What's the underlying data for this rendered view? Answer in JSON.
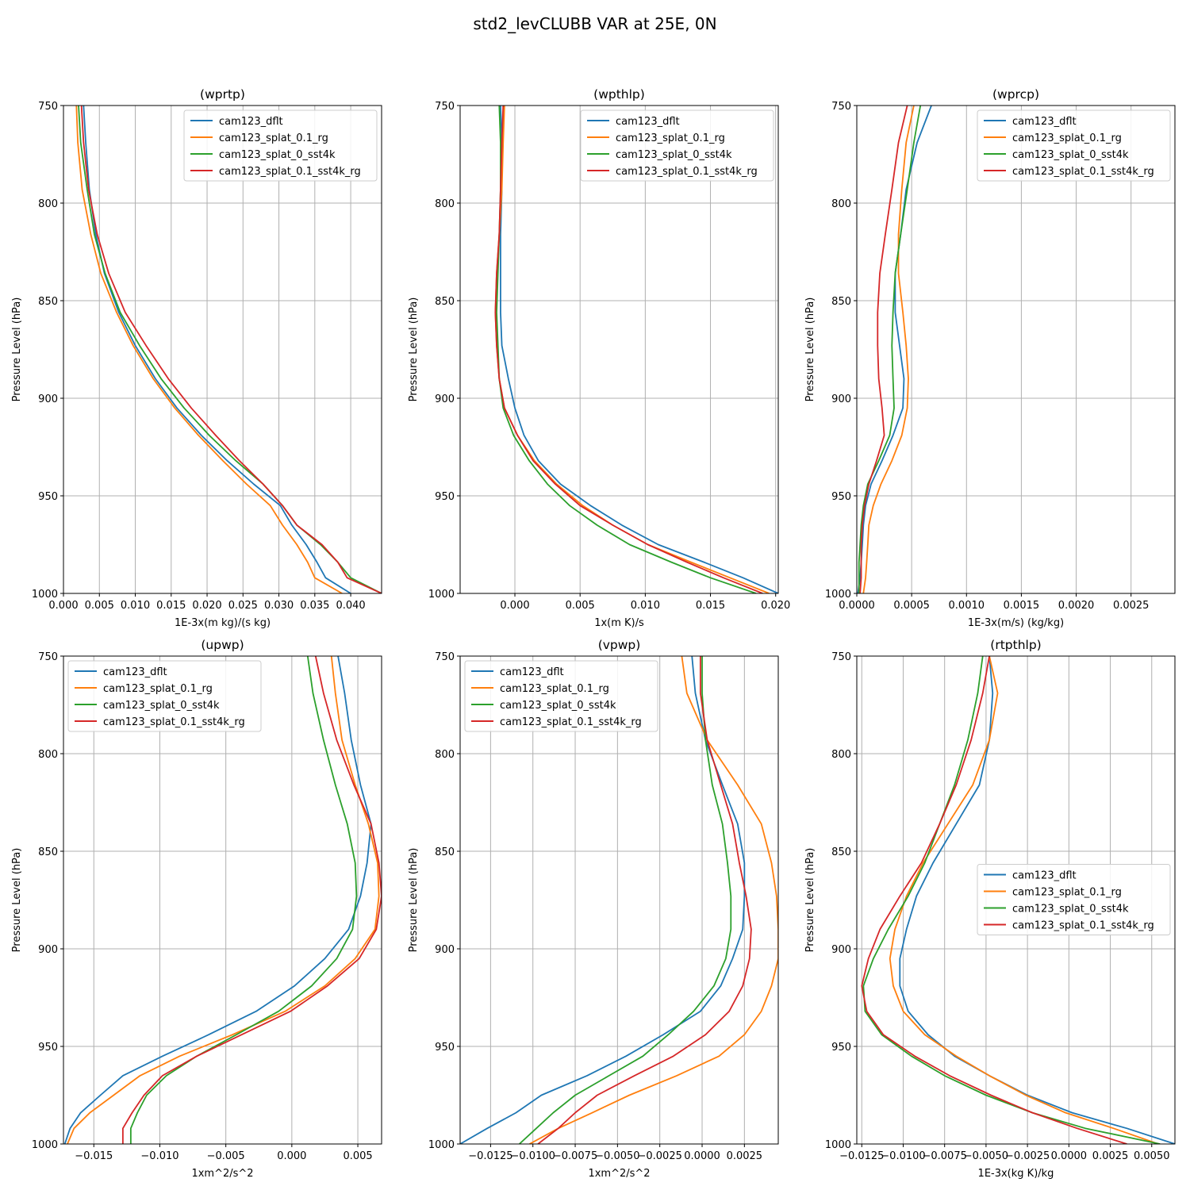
{
  "suptitle": "std2_levCLUBB VAR at 25E, 0N",
  "legend_entries": [
    "cam123_dflt",
    "cam123_splat_0.1_rg",
    "cam123_splat_0_sst4k",
    "cam123_splat_0.1_sst4k_rg"
  ],
  "series_colors": [
    "#1f77b4",
    "#ff7f0e",
    "#2ca02c",
    "#d62728"
  ],
  "levels_hPa": [
    750,
    769,
    793,
    816,
    836,
    856,
    873,
    890,
    905,
    919,
    932,
    944,
    955,
    965,
    975,
    984,
    992,
    1000
  ],
  "chart_data": [
    {
      "type": "line",
      "title": "(wprtp)",
      "xlabel": "1E-3x(m kg)/(s kg)",
      "ylabel": "Pressure Level (hPa)",
      "xlim": [
        0.0,
        0.0443
      ],
      "ylim": [
        1000,
        750
      ],
      "xticks": [
        "0.000",
        "0.005",
        "0.010",
        "0.015",
        "0.020",
        "0.025",
        "0.030",
        "0.035",
        "0.040"
      ],
      "yticks": [
        "750",
        "800",
        "850",
        "900",
        "950",
        "1000"
      ],
      "legend": "upper right",
      "series": [
        {
          "name": "cam123_dflt",
          "values": [
            0.0028,
            0.0031,
            0.0036,
            0.0045,
            0.0057,
            0.0077,
            0.01,
            0.0128,
            0.0158,
            0.0192,
            0.0228,
            0.0265,
            0.0302,
            0.0318,
            0.0338,
            0.0353,
            0.0365,
            0.04
          ]
        },
        {
          "name": "cam123_splat_0.1_rg",
          "values": [
            0.0018,
            0.002,
            0.0026,
            0.0038,
            0.0052,
            0.0074,
            0.0097,
            0.0125,
            0.0155,
            0.0188,
            0.0222,
            0.0255,
            0.0288,
            0.0305,
            0.0325,
            0.034,
            0.035,
            0.0388
          ]
        },
        {
          "name": "cam123_splat_0_sst4k",
          "values": [
            0.0021,
            0.0024,
            0.0033,
            0.0043,
            0.0058,
            0.0079,
            0.0106,
            0.0136,
            0.0168,
            0.0203,
            0.024,
            0.0278,
            0.0305,
            0.0325,
            0.0358,
            0.0382,
            0.04,
            0.0443
          ]
        },
        {
          "name": "cam123_splat_0.1_sst4k_rg",
          "values": [
            0.0025,
            0.0028,
            0.0035,
            0.0047,
            0.0063,
            0.0086,
            0.0115,
            0.0146,
            0.0178,
            0.0212,
            0.0245,
            0.0278,
            0.0305,
            0.0325,
            0.036,
            0.0382,
            0.0395,
            0.0443
          ]
        }
      ]
    },
    {
      "type": "line",
      "title": "(wpthlp)",
      "xlabel": "1x(m K)/s",
      "ylabel": "Pressure Level (hPa)",
      "xlim": [
        -0.0042,
        0.0202
      ],
      "ylim": [
        1000,
        750
      ],
      "xticks": [
        "0.000",
        "0.005",
        "0.010",
        "0.015",
        "0.020"
      ],
      "yticks": [
        "750",
        "800",
        "850",
        "900",
        "950",
        "1000"
      ],
      "legend": "upper right",
      "series": [
        {
          "name": "cam123_dflt",
          "values": [
            -0.0011,
            -0.001,
            -0.001,
            -0.0011,
            -0.0011,
            -0.0011,
            -0.001,
            -0.0005,
            0.0,
            0.0007,
            0.0018,
            0.0035,
            0.0058,
            0.0082,
            0.011,
            0.0145,
            0.0175,
            0.0202
          ]
        },
        {
          "name": "cam123_splat_0.1_rg",
          "values": [
            -0.0008,
            -0.0009,
            -0.001,
            -0.0012,
            -0.0014,
            -0.0015,
            -0.0014,
            -0.0012,
            -0.0008,
            0.0002,
            0.0015,
            0.0032,
            0.0052,
            0.0075,
            0.0102,
            0.0135,
            0.0165,
            0.0195
          ]
        },
        {
          "name": "cam123_splat_0_sst4k",
          "values": [
            -0.0012,
            -0.0011,
            -0.0011,
            -0.0012,
            -0.0013,
            -0.0014,
            -0.0013,
            -0.0012,
            -0.0009,
            -0.0001,
            0.0011,
            0.0025,
            0.0042,
            0.0063,
            0.0088,
            0.012,
            0.015,
            0.0185
          ]
        },
        {
          "name": "cam123_splat_0.1_sst4k_rg",
          "values": [
            -0.0009,
            -0.001,
            -0.0011,
            -0.0012,
            -0.0014,
            -0.0015,
            -0.0014,
            -0.0012,
            -0.0008,
            0.0002,
            0.0014,
            0.0031,
            0.005,
            0.0075,
            0.0102,
            0.0132,
            0.016,
            0.019
          ]
        }
      ]
    },
    {
      "type": "line",
      "title": "(wprcp)",
      "xlabel": "1E-3x(m/s) (kg/kg)",
      "ylabel": "Pressure Level (hPa)",
      "xlim": [
        0.0,
        0.0029
      ],
      "ylim": [
        1000,
        750
      ],
      "xticks": [
        "0.0000",
        "0.0005",
        "0.0010",
        "0.0015",
        "0.0020",
        "0.0025"
      ],
      "yticks": [
        "750",
        "800",
        "850",
        "900",
        "950",
        "1000"
      ],
      "legend": "upper right",
      "series": [
        {
          "name": "cam123_dflt",
          "values": [
            0.00068,
            0.00055,
            0.00045,
            0.0004,
            0.00035,
            0.00035,
            0.00039,
            0.00043,
            0.00042,
            0.00033,
            0.00023,
            0.00013,
            8e-05,
            6e-05,
            5e-05,
            4e-05,
            3e-05,
            1e-05
          ]
        },
        {
          "name": "cam123_splat_0.1_rg",
          "values": [
            0.00052,
            0.00045,
            0.00041,
            0.00038,
            0.00038,
            0.00042,
            0.00045,
            0.00047,
            0.00046,
            0.00041,
            0.00032,
            0.00022,
            0.00015,
            0.00011,
            0.0001,
            9e-05,
            8e-05,
            6e-05
          ]
        },
        {
          "name": "cam123_splat_0_sst4k",
          "values": [
            0.00058,
            0.00052,
            0.00046,
            0.0004,
            0.00035,
            0.00033,
            0.00032,
            0.00033,
            0.00034,
            0.0003,
            0.0002,
            0.0001,
            6e-05,
            4e-05,
            3e-05,
            2e-05,
            2e-05,
            2e-05
          ]
        },
        {
          "name": "cam123_splat_0.1_sst4k_rg",
          "values": [
            0.00046,
            0.00038,
            0.00032,
            0.00026,
            0.00021,
            0.00019,
            0.00019,
            0.0002,
            0.00023,
            0.00025,
            0.00018,
            0.00011,
            7e-05,
            5e-05,
            4e-05,
            4e-05,
            4e-05,
            3e-05
          ]
        }
      ]
    },
    {
      "type": "line",
      "title": "(upwp)",
      "xlabel": "1xm^2/s^2",
      "ylabel": "Pressure Level (hPa)",
      "xlim": [
        -0.0173,
        0.0068
      ],
      "ylim": [
        1000,
        750
      ],
      "xticks": [
        "−0.015",
        "−0.010",
        "−0.005",
        "0.000",
        "0.005"
      ],
      "yticks": [
        "750",
        "800",
        "850",
        "900",
        "950",
        "1000"
      ],
      "legend": "upper left",
      "series": [
        {
          "name": "cam123_dflt",
          "values": [
            0.0035,
            0.004,
            0.0045,
            0.0052,
            0.006,
            0.0057,
            0.0052,
            0.0043,
            0.0025,
            0.0002,
            -0.0027,
            -0.0063,
            -0.0098,
            -0.0128,
            -0.0145,
            -0.016,
            -0.0168,
            -0.0172
          ]
        },
        {
          "name": "cam123_splat_0.1_rg",
          "values": [
            0.003,
            0.0033,
            0.0038,
            0.0048,
            0.0058,
            0.0065,
            0.0066,
            0.0063,
            0.0048,
            0.0025,
            -0.0005,
            -0.0045,
            -0.0085,
            -0.0115,
            -0.0135,
            -0.0153,
            -0.0165,
            -0.017
          ]
        },
        {
          "name": "cam123_splat_0_sst4k",
          "values": [
            0.0012,
            0.0016,
            0.0024,
            0.0033,
            0.0042,
            0.0048,
            0.0049,
            0.0046,
            0.0034,
            0.0015,
            -0.001,
            -0.0042,
            -0.0072,
            -0.0095,
            -0.011,
            -0.0117,
            -0.0122,
            -0.0122
          ]
        },
        {
          "name": "cam123_splat_0.1_sst4k_rg",
          "values": [
            0.0018,
            0.0024,
            0.0034,
            0.0047,
            0.006,
            0.0066,
            0.0068,
            0.0064,
            0.0051,
            0.0027,
            -0.0001,
            -0.0038,
            -0.0072,
            -0.0098,
            -0.0112,
            -0.0121,
            -0.0128,
            -0.0128
          ]
        }
      ]
    },
    {
      "type": "line",
      "title": "(vpwp)",
      "xlabel": "1xm^2/s^2",
      "ylabel": "Pressure Level (hPa)",
      "xlim": [
        -0.0143,
        0.0045
      ],
      "ylim": [
        1000,
        750
      ],
      "xticks": [
        "−0.0125",
        "−0.0100",
        "−0.0075",
        "−0.0050",
        "−0.0025",
        "0.0000",
        "0.0025"
      ],
      "yticks": [
        "750",
        "800",
        "850",
        "900",
        "950",
        "1000"
      ],
      "legend": "upper left",
      "series": [
        {
          "name": "cam123_dflt",
          "values": [
            -0.0006,
            -0.0004,
            0.0002,
            0.0012,
            0.0021,
            0.0025,
            0.0025,
            0.0024,
            0.0018,
            0.0011,
            -0.0001,
            -0.0023,
            -0.0045,
            -0.0068,
            -0.0095,
            -0.011,
            -0.0127,
            -0.0143
          ]
        },
        {
          "name": "cam123_splat_0.1_rg",
          "values": [
            -0.0012,
            -0.0009,
            0.0003,
            0.0021,
            0.0035,
            0.0041,
            0.0044,
            0.0045,
            0.0045,
            0.0041,
            0.0035,
            0.0025,
            0.001,
            -0.0015,
            -0.0043,
            -0.0065,
            -0.0085,
            -0.0102
          ]
        },
        {
          "name": "cam123_splat_0_sst4k",
          "values": [
            0.0,
            0.0,
            0.0002,
            0.0006,
            0.0012,
            0.0015,
            0.0017,
            0.0017,
            0.0014,
            0.0007,
            -0.0005,
            -0.002,
            -0.0035,
            -0.0055,
            -0.0075,
            -0.0088,
            -0.0098,
            -0.0108
          ]
        },
        {
          "name": "cam123_splat_0.1_sst4k_rg",
          "values": [
            -0.0001,
            -0.0001,
            0.0003,
            0.0011,
            0.0018,
            0.0022,
            0.0026,
            0.0029,
            0.0028,
            0.0024,
            0.0016,
            0.0002,
            -0.0017,
            -0.004,
            -0.0062,
            -0.0075,
            -0.0085,
            -0.0097
          ]
        }
      ]
    },
    {
      "type": "line",
      "title": "(rtpthlp)",
      "xlabel": "1E-3x(kg K)/kg",
      "ylabel": "Pressure Level (hPa)",
      "xlim": [
        -0.0128,
        0.0064
      ],
      "ylim": [
        1000,
        750
      ],
      "xticks": [
        "−0.0125",
        "−0.0100",
        "−0.0075",
        "−0.0050",
        "−0.0025",
        "0.0000",
        "0.0025",
        "0.0050"
      ],
      "yticks": [
        "750",
        "800",
        "850",
        "900",
        "950",
        "1000"
      ],
      "legend": "center right",
      "series": [
        {
          "name": "cam123_dflt",
          "values": [
            -0.0048,
            -0.0046,
            -0.0048,
            -0.0054,
            -0.0068,
            -0.0082,
            -0.0092,
            -0.0098,
            -0.0102,
            -0.0102,
            -0.0097,
            -0.0085,
            -0.0069,
            -0.0048,
            -0.0025,
            0.0002,
            0.0035,
            0.0064
          ]
        },
        {
          "name": "cam123_splat_0.1_rg",
          "values": [
            -0.0048,
            -0.0043,
            -0.0048,
            -0.0058,
            -0.0073,
            -0.0088,
            -0.0098,
            -0.0105,
            -0.0108,
            -0.0106,
            -0.01,
            -0.0087,
            -0.0068,
            -0.0048,
            -0.0026,
            -0.0002,
            0.0027,
            0.0054
          ]
        },
        {
          "name": "cam123_splat_0_sst4k",
          "values": [
            -0.0052,
            -0.0055,
            -0.0061,
            -0.0069,
            -0.0078,
            -0.0087,
            -0.0097,
            -0.0109,
            -0.0118,
            -0.0124,
            -0.0123,
            -0.0113,
            -0.0095,
            -0.0075,
            -0.005,
            -0.0022,
            0.001,
            0.0055
          ]
        },
        {
          "name": "cam123_splat_0.1_sst4k_rg",
          "values": [
            -0.0048,
            -0.0052,
            -0.0059,
            -0.0068,
            -0.0078,
            -0.0089,
            -0.0102,
            -0.0114,
            -0.0121,
            -0.0125,
            -0.0122,
            -0.0112,
            -0.0093,
            -0.0072,
            -0.0047,
            -0.0022,
            0.0005,
            0.0035
          ]
        }
      ]
    }
  ]
}
